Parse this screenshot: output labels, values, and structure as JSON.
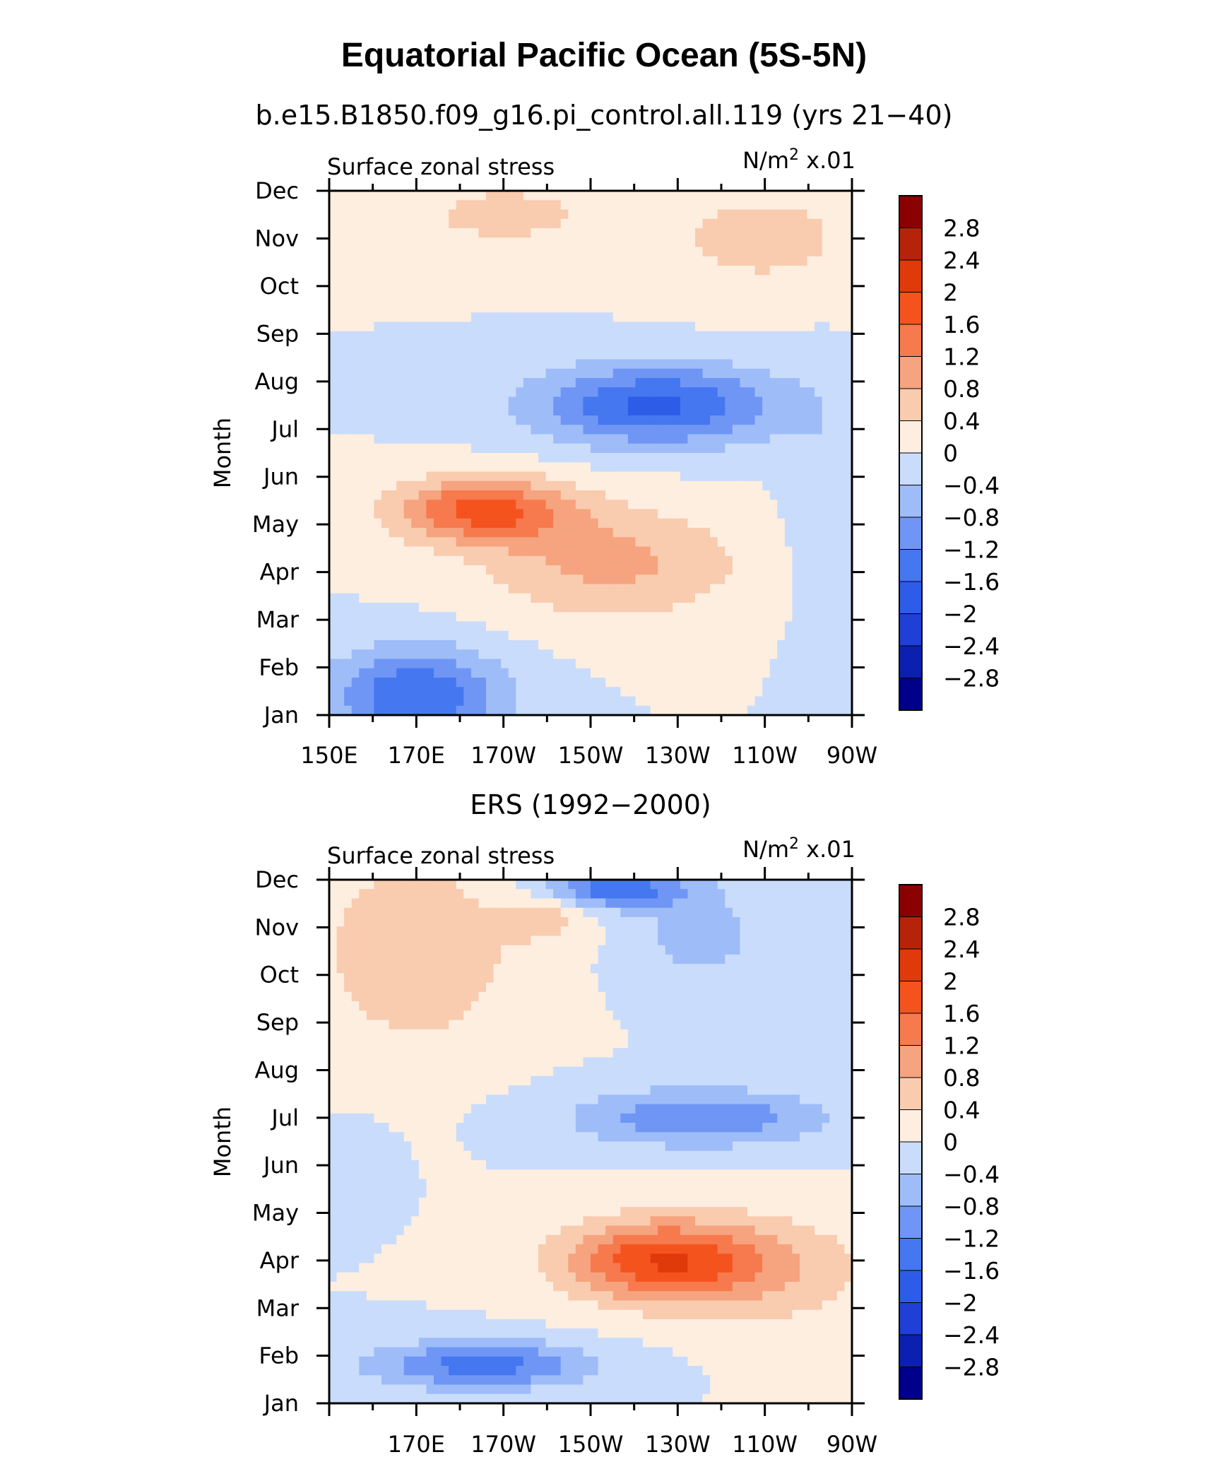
{
  "figure": {
    "title": "Equatorial Pacific Ocean (5S-5N)"
  },
  "colors": {
    "levels": [
      "#00008b",
      "#0b1fb0",
      "#1f3fd6",
      "#2d5de8",
      "#4577f0",
      "#6f96f5",
      "#9ebcf8",
      "#c9dcfb",
      "#fdeee0",
      "#f9cbaf",
      "#f6a37f",
      "#f67a4e",
      "#f5531e",
      "#e03a0b",
      "#b52409",
      "#8b0000"
    ]
  },
  "chart_data": [
    {
      "type": "heatmap",
      "name": "panel-top",
      "subtitle": "b.e15.B1850.f09_g16.pi_control.all.119 (yrs 21−40)",
      "left_label": "Surface zonal stress",
      "right_label_main": "N/m",
      "right_label_exp": "2",
      "right_label_tail": " x.01",
      "ylabel": "Month",
      "x_ticks": [
        "150E",
        "170E",
        "170W",
        "150W",
        "130W",
        "110W",
        "90W"
      ],
      "y_ticks": [
        "Jan",
        "Feb",
        "Mar",
        "Apr",
        "May",
        "Jun",
        "Jul",
        "Aug",
        "Sep",
        "Oct",
        "Nov",
        "Dec"
      ],
      "x_range_lon": [
        150,
        270
      ],
      "colorbar_labels": [
        "2.8",
        "2.4",
        "2",
        "1.6",
        "1.2",
        "0.8",
        "0.4",
        "0",
        "−0.4",
        "−0.8",
        "−1.2",
        "−1.6",
        "−2",
        "−2.4",
        "−2.8"
      ],
      "levels": [
        -2.8,
        -2.4,
        -2,
        -1.6,
        -1.2,
        -0.8,
        -0.4,
        0,
        0.4,
        0.8,
        1.2,
        1.6,
        2,
        2.4,
        2.8
      ],
      "features": [
        {
          "lon": 190,
          "month": 10.5,
          "sx": 28,
          "sy": 0.9,
          "amp": 0.5
        },
        {
          "lon": 250,
          "month": 10.0,
          "sx": 25,
          "sy": 1.2,
          "amp": 0.55
        },
        {
          "lon": 225,
          "month": 6.5,
          "sx": 28,
          "sy": 0.85,
          "amp": -1.7
        },
        {
          "lon": 185,
          "month": 4.3,
          "sx": 20,
          "sy": 0.7,
          "amp": 1.7
        },
        {
          "lon": 215,
          "month": 3.2,
          "sx": 30,
          "sy": 1.2,
          "amp": 0.9
        },
        {
          "lon": 170,
          "month": 0.4,
          "sx": 20,
          "sy": 1.0,
          "amp": -1.6
        },
        {
          "lon": 262,
          "month": 4.5,
          "sx": 8,
          "sy": 2.5,
          "amp": -0.3
        }
      ]
    },
    {
      "type": "heatmap",
      "name": "panel-bottom",
      "subtitle": "ERS (1992−2000)",
      "left_label": "Surface zonal stress",
      "right_label_main": "N/m",
      "right_label_exp": "2",
      "right_label_tail": " x.01",
      "ylabel": "Month",
      "x_ticks": [
        "170E",
        "170W",
        "150W",
        "130W",
        "110W",
        "90W"
      ],
      "y_ticks": [
        "Jan",
        "Feb",
        "Mar",
        "Apr",
        "May",
        "Jun",
        "Jul",
        "Aug",
        "Sep",
        "Oct",
        "Nov",
        "Dec"
      ],
      "x_range_lon": [
        150,
        270
      ],
      "colorbar_labels": [
        "2.8",
        "2.4",
        "2",
        "1.6",
        "1.2",
        "0.8",
        "0.4",
        "0",
        "−0.4",
        "−0.8",
        "−1.2",
        "−1.6",
        "−2",
        "−2.4",
        "−2.8"
      ],
      "levels": [
        -2.8,
        -2.4,
        -2,
        -1.6,
        -1.2,
        -0.8,
        -0.4,
        0,
        0.4,
        0.8,
        1.2,
        1.6,
        2,
        2.4,
        2.8
      ],
      "features": [
        {
          "lon": 170,
          "month": 9.5,
          "sx": 22,
          "sy": 2.0,
          "amp": 0.8
        },
        {
          "lon": 200,
          "month": 10.3,
          "sx": 10,
          "sy": 0.6,
          "amp": 0.6
        },
        {
          "lon": 215,
          "month": 10.8,
          "sx": 18,
          "sy": 0.4,
          "amp": -1.5
        },
        {
          "lon": 235,
          "month": 9.8,
          "sx": 15,
          "sy": 1.0,
          "amp": -0.6
        },
        {
          "lon": 235,
          "month": 6.0,
          "sx": 28,
          "sy": 0.6,
          "amp": -1.2
        },
        {
          "lon": 225,
          "month": 3.0,
          "sx": 22,
          "sy": 0.85,
          "amp": 1.8
        },
        {
          "lon": 250,
          "month": 2.8,
          "sx": 25,
          "sy": 1.2,
          "amp": 0.7
        },
        {
          "lon": 185,
          "month": 0.8,
          "sx": 25,
          "sy": 0.5,
          "amp": -1.4
        },
        {
          "lon": 155,
          "month": 5.0,
          "sx": 8,
          "sy": 0.8,
          "amp": -0.2
        }
      ]
    }
  ]
}
